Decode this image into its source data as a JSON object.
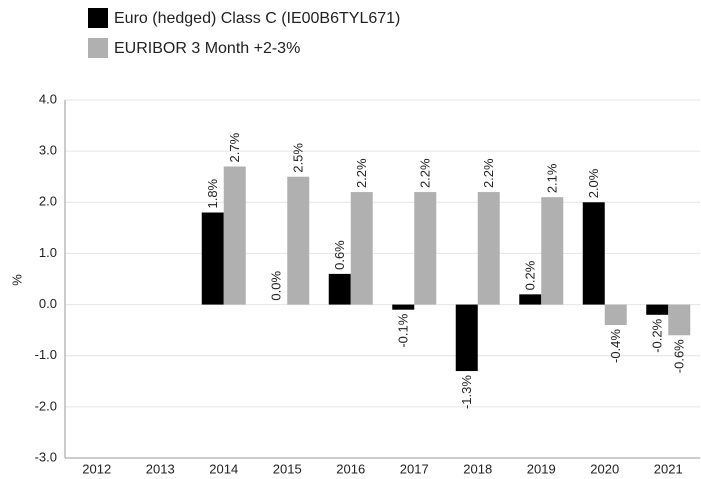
{
  "chart_data": {
    "type": "bar",
    "ylabel": "%",
    "categories": [
      "2012",
      "2013",
      "2014",
      "2015",
      "2016",
      "2017",
      "2018",
      "2019",
      "2020",
      "2021"
    ],
    "series": [
      {
        "name": "Euro (hedged) Class C (IE00B6TYL671)",
        "color": "#000000",
        "values": [
          null,
          null,
          1.8,
          0.0,
          0.6,
          -0.1,
          -1.3,
          0.2,
          2.0,
          -0.2
        ],
        "value_labels": [
          null,
          null,
          "1.8%",
          "0.0%",
          "0.6%",
          "-0.1%",
          "-1.3%",
          "0.2%",
          "2.0%",
          "-0.2%"
        ]
      },
      {
        "name": "EURIBOR 3 Month +2-3%",
        "color": "#b0b0b0",
        "values": [
          null,
          null,
          2.7,
          2.5,
          2.2,
          2.2,
          2.2,
          2.1,
          -0.4,
          -0.6
        ],
        "value_labels": [
          null,
          null,
          "2.7%",
          "2.5%",
          "2.2%",
          "2.2%",
          "2.2%",
          "2.1%",
          "-0.4%",
          "-0.6%"
        ]
      }
    ],
    "ylim": [
      -3,
      4
    ],
    "yticks": [
      {
        "value": 4,
        "label": "4.0"
      },
      {
        "value": 3,
        "label": "3.0"
      },
      {
        "value": 2,
        "label": "2.0"
      },
      {
        "value": 1,
        "label": "1.0"
      },
      {
        "value": 0,
        "label": "0.0"
      },
      {
        "value": -1,
        "label": "-1.0"
      },
      {
        "value": -2,
        "label": "-2.0"
      },
      {
        "value": -3,
        "label": "-3.0"
      }
    ],
    "grid": true,
    "legend": "top-left"
  }
}
